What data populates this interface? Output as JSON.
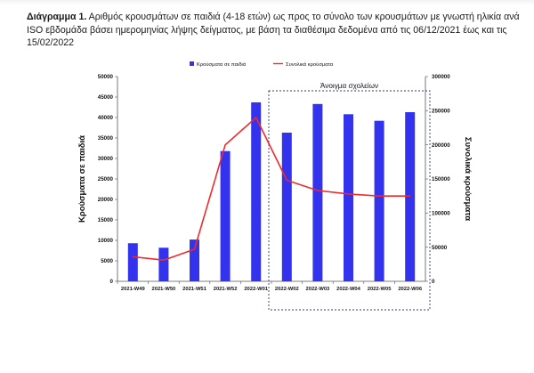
{
  "caption": {
    "label": "Διάγραμμα 1.",
    "text": " Αριθμός κρουσμάτων σε παιδιά (4-18 ετών) ως προς το σύνολο των κρουσμάτων με γνωστή ηλικία ανά ISO εβδομάδα βάσει ημερομηνίας λήψης δείγματος, με βάση τα διαθέσιμα δεδομένα από τις 06/12/2021  έως και τις 15/02/2022"
  },
  "chart_data": {
    "type": "bar+line",
    "categories": [
      "2021-W49",
      "2021-W50",
      "2021-W51",
      "2021-W52",
      "2022-W01",
      "2022-W02",
      "2022-W03",
      "2022-W04",
      "2022-W05",
      "2022-W06"
    ],
    "series": [
      {
        "name": "Κρούσματα σε παιδιά",
        "type": "bar",
        "axis": "left",
        "color": "#3333ee",
        "values": [
          9300,
          8200,
          10200,
          31800,
          43700,
          36300,
          43300,
          40800,
          39200,
          41300
        ]
      },
      {
        "name": "Συνολικά κρούσματα",
        "type": "line",
        "axis": "right",
        "color": "#ee2b2b",
        "values": [
          36000,
          31000,
          47000,
          200000,
          240000,
          148000,
          133000,
          128000,
          125000,
          125000
        ]
      }
    ],
    "ylabel_left": "Κρούσματα σε παιδιά",
    "ylabel_right": "Συνολικά κρούσματα",
    "ylim_left": [
      0,
      50000
    ],
    "ylim_right": [
      0,
      300000
    ],
    "yticks_left": [
      "0",
      "5000",
      "10000",
      "15000",
      "20000",
      "25000",
      "30000",
      "35000",
      "40000",
      "45000",
      "50000"
    ],
    "yticks_right": [
      "0",
      "50000",
      "100000",
      "150000",
      "200000",
      "250000",
      "300000"
    ],
    "legend_position": "top",
    "grid": false,
    "annotation": {
      "text": "Άνοιγμα σχολείων",
      "from_category": "2022-W02",
      "to_category": "2022-W06",
      "style": "dashed box",
      "color": "#2b3a7a"
    }
  }
}
